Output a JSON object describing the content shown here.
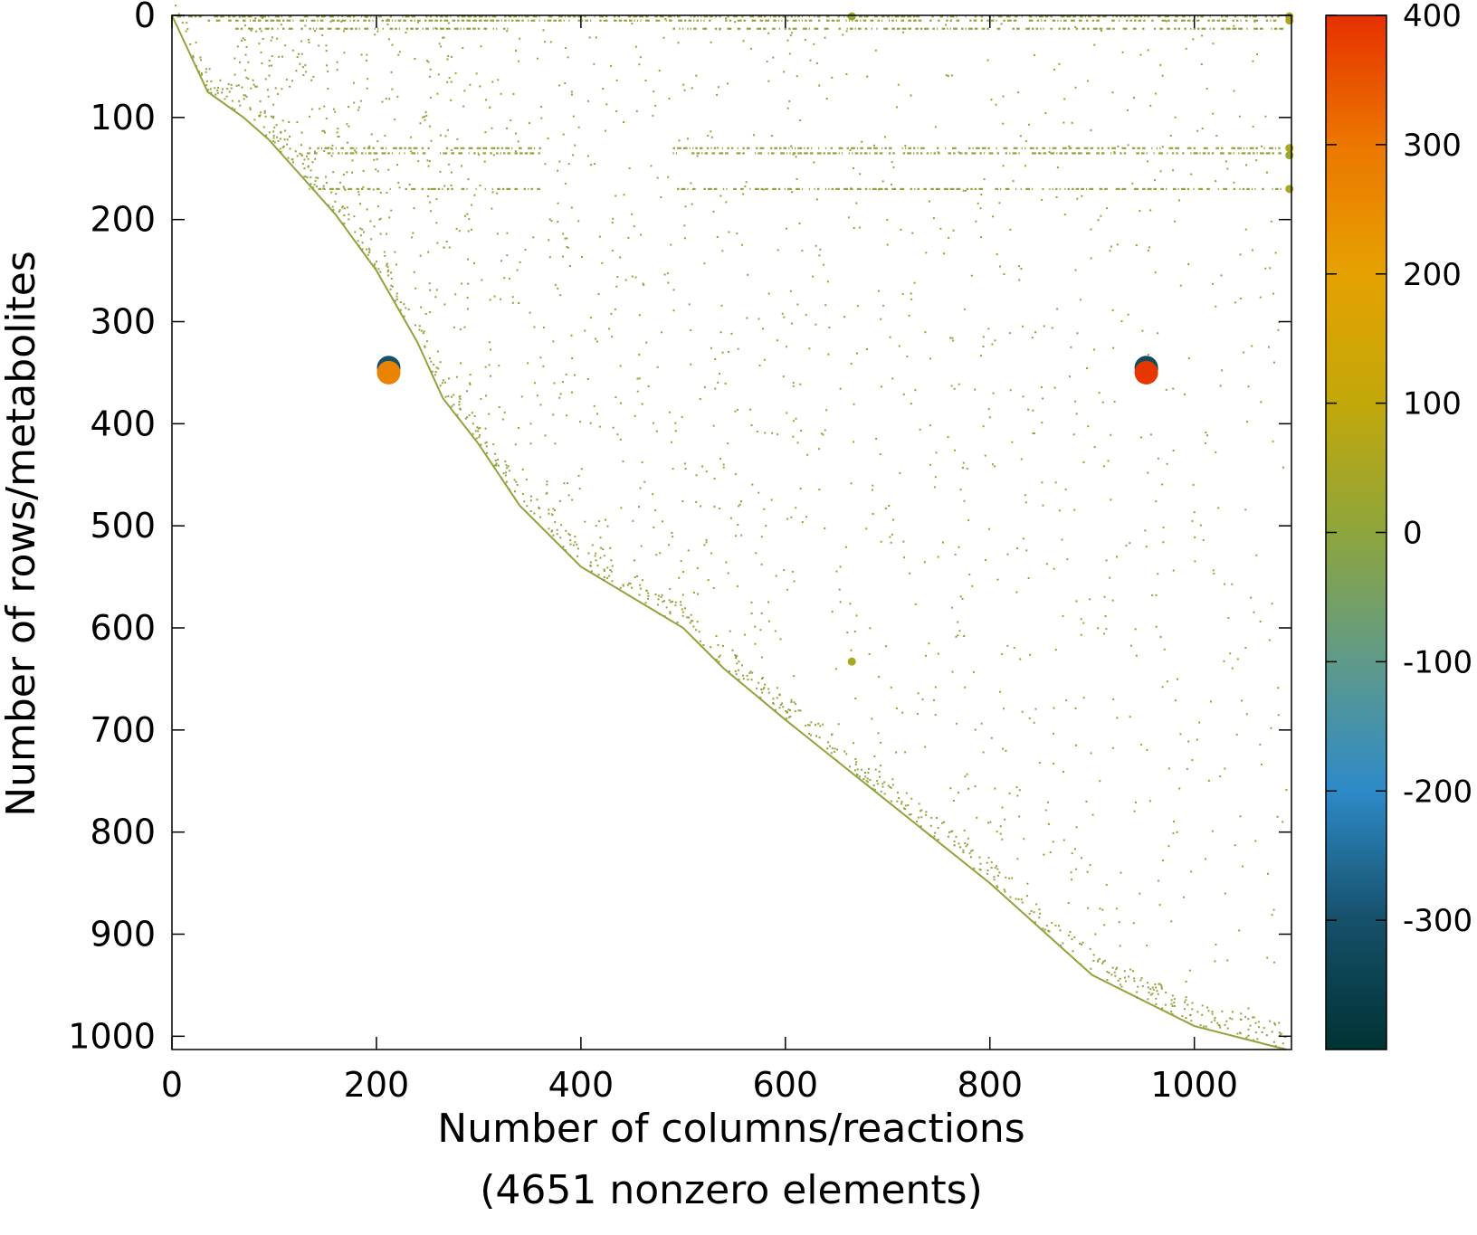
{
  "chart_data": {
    "type": "scatter",
    "title": "",
    "xlabel": "Number of columns/reactions",
    "xlabel_line2": "(4651 nonzero elements)",
    "ylabel": "Number of rows/metabolites",
    "xlim": [
      0,
      1095
    ],
    "ylim": [
      1013,
      0
    ],
    "x_ticks": [
      "0",
      "200",
      "400",
      "600",
      "800",
      "1000"
    ],
    "y_ticks": [
      "0",
      "100",
      "200",
      "300",
      "400",
      "500",
      "600",
      "700",
      "800",
      "900",
      "1000"
    ],
    "colorbar": {
      "range": [
        -400,
        400
      ],
      "ticks": [
        "400",
        "300",
        "200",
        "100",
        "0",
        "-100",
        "-200",
        "-300"
      ],
      "colors": [
        "#003333",
        "#16506a",
        "#2d8ac8",
        "#5f9a8a",
        "#8ea53c",
        "#c2a80a",
        "#e5a100",
        "#ec7700",
        "#e63000"
      ]
    },
    "diagonal": [
      [
        0,
        0
      ],
      [
        35,
        75
      ],
      [
        70,
        100
      ],
      [
        95,
        122
      ],
      [
        120,
        150
      ],
      [
        160,
        195
      ],
      [
        200,
        250
      ],
      [
        240,
        320
      ],
      [
        265,
        375
      ],
      [
        300,
        420
      ],
      [
        340,
        480
      ],
      [
        400,
        540
      ],
      [
        500,
        600
      ],
      [
        540,
        640
      ],
      [
        600,
        690
      ],
      [
        700,
        770
      ],
      [
        800,
        850
      ],
      [
        900,
        940
      ],
      [
        1000,
        990
      ],
      [
        1090,
        1013
      ]
    ],
    "dense_rows": [
      {
        "y": 1,
        "x": [
          5,
          1085
        ]
      },
      {
        "y": 5,
        "x": [
          35,
          1085
        ]
      },
      {
        "y": 13,
        "x": [
          60,
          330
        ]
      },
      {
        "y": 13,
        "x": [
          490,
          1085
        ]
      },
      {
        "y": 130,
        "x": [
          130,
          360
        ]
      },
      {
        "y": 130,
        "x": [
          490,
          1085
        ]
      },
      {
        "y": 135,
        "x": [
          130,
          360
        ]
      },
      {
        "y": 135,
        "x": [
          490,
          1085
        ]
      },
      {
        "y": 170,
        "x": [
          130,
          360
        ]
      },
      {
        "y": 170,
        "x": [
          490,
          1085
        ]
      }
    ],
    "large_points": [
      {
        "x": 212,
        "y": 345,
        "value": -300
      },
      {
        "x": 212,
        "y": 350,
        "value": 270
      },
      {
        "x": 953,
        "y": 345,
        "value": -320
      },
      {
        "x": 953,
        "y": 350,
        "value": 390
      }
    ],
    "medium_points": [
      {
        "x": 665,
        "y": 1,
        "value": 20
      },
      {
        "x": 1093,
        "y": 1,
        "value": 40
      },
      {
        "x": 1093,
        "y": 5,
        "value": 60
      },
      {
        "x": 1093,
        "y": 130,
        "value": 60
      },
      {
        "x": 1093,
        "y": 137,
        "value": 20
      },
      {
        "x": 1093,
        "y": 170,
        "value": 60
      },
      {
        "x": 665,
        "y": 633,
        "value": 60
      }
    ]
  }
}
